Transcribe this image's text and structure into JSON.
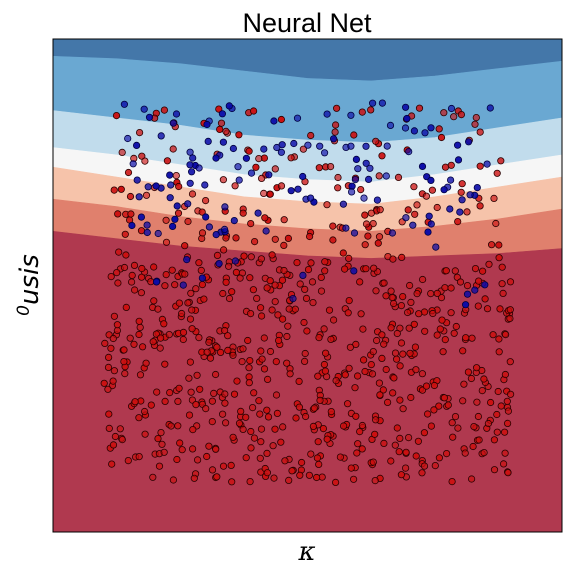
{
  "chart_data": {
    "type": "scatter",
    "title": "Neural Net",
    "xlabel": "κ",
    "ylabel": "usis",
    "ylabel_superscript": "0",
    "axis_ticks": false,
    "grid": false,
    "legend": "none",
    "xlim": [
      0,
      1
    ],
    "ylim": [
      0,
      1
    ],
    "background": {
      "type": "decision-contour",
      "levels": [
        {
          "color": "#4477a9",
          "boundary_y": [
            0.965,
            0.96,
            0.95,
            0.935,
            0.92,
            0.915,
            0.925,
            0.94,
            0.955
          ]
        },
        {
          "color": "#6aa8d2",
          "boundary_y": [
            0.855,
            0.84,
            0.825,
            0.805,
            0.795,
            0.79,
            0.8,
            0.82,
            0.84
          ]
        },
        {
          "color": "#c1dcec",
          "boundary_y": [
            0.78,
            0.765,
            0.745,
            0.725,
            0.715,
            0.71,
            0.725,
            0.745,
            0.765
          ]
        },
        {
          "color": "#f6f6f6",
          "boundary_y": [
            0.74,
            0.72,
            0.7,
            0.68,
            0.67,
            0.665,
            0.68,
            0.7,
            0.72
          ]
        },
        {
          "color": "#f6c3aa",
          "boundary_y": [
            0.675,
            0.66,
            0.64,
            0.625,
            0.615,
            0.61,
            0.62,
            0.635,
            0.655
          ]
        },
        {
          "color": "#e0806d",
          "boundary_y": [
            0.61,
            0.595,
            0.58,
            0.57,
            0.56,
            0.555,
            0.56,
            0.565,
            0.575
          ]
        },
        {
          "color": "#b0394f",
          "boundary_y": [
            0.0,
            0.0,
            0.0,
            0.0,
            0.0,
            0.0,
            0.0,
            0.0,
            0.0
          ]
        }
      ],
      "boundary_x": [
        0.0,
        0.125,
        0.25,
        0.375,
        0.5,
        0.625,
        0.75,
        0.875,
        1.0
      ]
    },
    "series": [
      {
        "class": "red",
        "color": "#cc1010",
        "edge": "#2a0000",
        "regions": [
          {
            "x": [
              0.1,
              0.9
            ],
            "y": [
              0.1,
              0.56
            ],
            "count": 640
          },
          {
            "x": [
              0.12,
              0.88
            ],
            "y": [
              0.56,
              0.86
            ],
            "count": 170
          }
        ]
      },
      {
        "class": "blue",
        "color": "#0a0aa8",
        "edge": "#000040",
        "regions": [
          {
            "x": [
              0.14,
              0.86
            ],
            "y": [
              0.6,
              0.87
            ],
            "count": 130
          },
          {
            "x": [
              0.2,
              0.85
            ],
            "y": [
              0.45,
              0.6
            ],
            "count": 15
          }
        ]
      }
    ]
  }
}
